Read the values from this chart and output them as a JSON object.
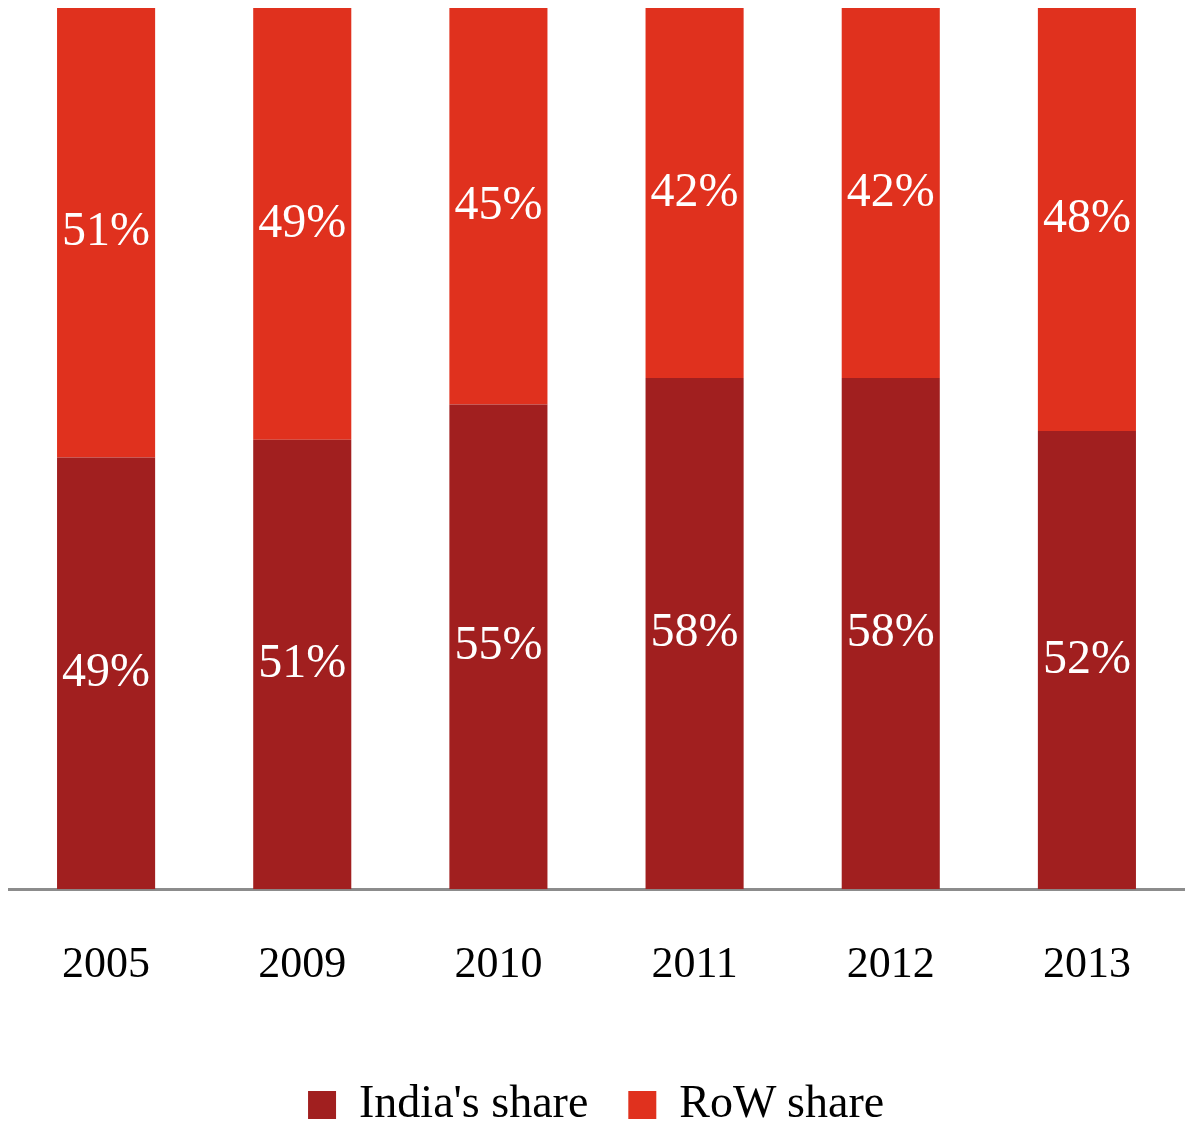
{
  "chart_data": {
    "type": "bar",
    "stacked": true,
    "categories": [
      "2005",
      "2009",
      "2010",
      "2011",
      "2012",
      "2013"
    ],
    "series": [
      {
        "name": "India's share",
        "color": "#a11f1f",
        "values": [
          49,
          51,
          55,
          58,
          58,
          52
        ],
        "value_labels": [
          "49%",
          "51%",
          "55%",
          "58%",
          "58%",
          "52%"
        ]
      },
      {
        "name": "RoW share",
        "color": "#e0311e",
        "values": [
          51,
          49,
          45,
          42,
          42,
          48
        ],
        "value_labels": [
          "51%",
          "49%",
          "45%",
          "42%",
          "42%",
          "48%"
        ]
      }
    ],
    "grid": false,
    "legend": "bottom",
    "tick_labels": "x"
  }
}
